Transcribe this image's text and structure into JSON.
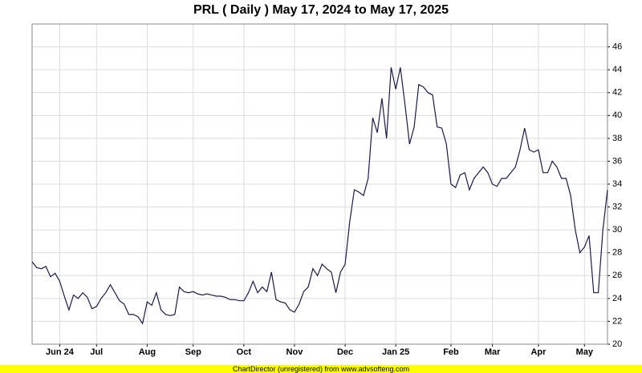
{
  "chart_data": {
    "type": "line",
    "title": "PRL ( Daily ) May 17, 2024 to May 17, 2025",
    "footer": "ChartDirector (unregistered) from www.advsofteng.com",
    "categories": [
      null,
      null,
      null,
      null,
      null,
      null,
      "Jun 24",
      null,
      null,
      null,
      null,
      null,
      null,
      null,
      "Jul",
      null,
      null,
      null,
      null,
      null,
      null,
      null,
      null,
      null,
      null,
      "Aug",
      null,
      null,
      null,
      null,
      null,
      null,
      null,
      null,
      null,
      "Sep",
      null,
      null,
      null,
      null,
      null,
      null,
      null,
      null,
      null,
      null,
      "Oct",
      null,
      null,
      null,
      null,
      null,
      null,
      null,
      null,
      null,
      null,
      "Nov",
      null,
      null,
      null,
      null,
      null,
      null,
      null,
      null,
      null,
      null,
      "Dec",
      null,
      null,
      null,
      null,
      null,
      null,
      null,
      null,
      null,
      null,
      "Jan 25",
      null,
      null,
      null,
      null,
      null,
      null,
      null,
      null,
      null,
      null,
      null,
      "Feb",
      null,
      null,
      null,
      null,
      null,
      null,
      null,
      null,
      "Mar",
      null,
      null,
      null,
      null,
      null,
      null,
      null,
      null,
      null,
      "Apr",
      null,
      null,
      null,
      null,
      null,
      null,
      null,
      null,
      null,
      "May",
      null,
      null,
      null,
      null,
      null
    ],
    "series": [
      {
        "name": "PRL",
        "color": "#1a1a4e",
        "values": [
          27.2,
          26.7,
          26.6,
          26.8,
          25.9,
          26.2,
          25.5,
          24.2,
          23.0,
          24.3,
          24.0,
          24.5,
          24.1,
          23.1,
          23.3,
          24.0,
          24.5,
          25.2,
          24.5,
          23.8,
          23.5,
          22.6,
          22.6,
          22.4,
          21.8,
          23.7,
          23.4,
          24.5,
          23.0,
          22.6,
          22.5,
          22.6,
          25.0,
          24.6,
          24.5,
          24.6,
          24.4,
          24.3,
          24.4,
          24.3,
          24.2,
          24.2,
          24.1,
          23.9,
          23.9,
          23.8,
          23.8,
          24.5,
          25.5,
          24.5,
          25.0,
          24.6,
          26.3,
          23.9,
          23.7,
          23.6,
          23.0,
          22.8,
          23.5,
          24.6,
          25.0,
          26.6,
          26.0,
          27.0,
          26.6,
          26.3,
          24.5,
          26.3,
          27.0,
          30.7,
          33.5,
          33.3,
          33.0,
          34.5,
          39.8,
          38.5,
          41.5,
          38.0,
          44.2,
          42.3,
          44.2,
          41.0,
          37.5,
          39.0,
          42.7,
          42.5,
          42.0,
          41.8,
          39.0,
          38.9,
          37.5,
          34.0,
          33.7,
          34.8,
          35.0,
          33.5,
          34.5,
          35.0,
          35.5,
          35.0,
          34.0,
          33.8,
          34.5,
          34.5,
          35.0,
          35.5,
          37.0,
          38.9,
          37.0,
          36.8,
          37.0,
          35.0,
          35.0,
          36.0,
          35.5,
          34.5,
          34.5,
          33.0,
          30.0,
          28.0,
          28.5,
          29.5,
          24.5,
          24.5,
          30.0,
          33.5
        ]
      }
    ],
    "ylim": [
      20,
      48
    ],
    "yticks": [
      20,
      22,
      24,
      26,
      28,
      30,
      32,
      34,
      36,
      38,
      40,
      42,
      44,
      46
    ],
    "grid": true
  }
}
